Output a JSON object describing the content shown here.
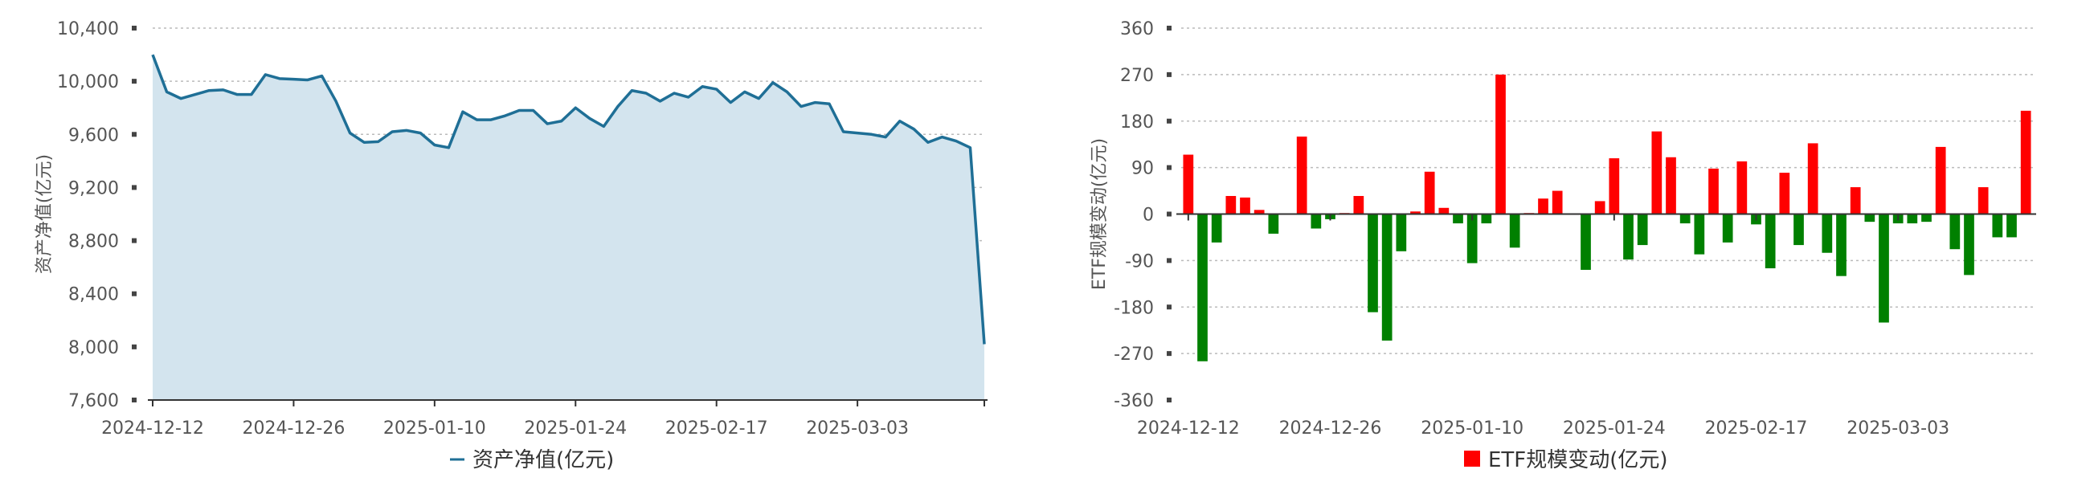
{
  "chart_data": [
    {
      "type": "area",
      "ylabel": "资产净值(亿元)",
      "ylim": [
        7600,
        10400
      ],
      "yticks": [
        7600,
        8000,
        8400,
        8800,
        9200,
        9600,
        10000,
        10400
      ],
      "ytick_labels": [
        "7,600",
        "8,000",
        "8,400",
        "8,800",
        "9,200",
        "9,600",
        "10,000",
        "10,400"
      ],
      "xtick_labels": [
        "2024-12-12",
        "2024-12-26",
        "2025-01-10",
        "2025-01-24",
        "2025-02-17",
        "2025-03-03"
      ],
      "xtick_index": [
        0,
        10,
        20,
        30,
        40,
        50
      ],
      "grid": true,
      "legend": {
        "position": "bottom",
        "entries": [
          "资产净值(亿元)"
        ]
      },
      "colors": {
        "line": "#1f6f96",
        "fill": "#d3e4ee"
      },
      "series": [
        {
          "name": "资产净值(亿元)",
          "values": [
            10200,
            9920,
            9870,
            9900,
            9930,
            9935,
            9900,
            9900,
            10050,
            10020,
            10015,
            10010,
            10040,
            9850,
            9610,
            9540,
            9545,
            9620,
            9630,
            9610,
            9520,
            9500,
            9770,
            9710,
            9710,
            9740,
            9780,
            9780,
            9680,
            9700,
            9800,
            9720,
            9660,
            9810,
            9930,
            9910,
            9850,
            9910,
            9880,
            9960,
            9940,
            9840,
            9920,
            9870,
            9990,
            9920,
            9810,
            9840,
            9830,
            9620,
            9610,
            9600,
            9580,
            9700,
            9640,
            9540,
            9580,
            9550,
            9500,
            8020
          ]
        }
      ]
    },
    {
      "type": "bar",
      "ylabel": "ETF规模变动(亿元)",
      "ylim": [
        -360,
        360
      ],
      "yticks": [
        -360,
        -270,
        -180,
        -90,
        0,
        90,
        180,
        270,
        360
      ],
      "ytick_labels": [
        "-360",
        "-270",
        "-180",
        "-90",
        "0",
        "90",
        "180",
        "270",
        "360"
      ],
      "xtick_labels": [
        "2024-12-12",
        "2024-12-26",
        "2025-01-10",
        "2025-01-24",
        "2025-02-17",
        "2025-03-03"
      ],
      "xtick_index": [
        0,
        10,
        20,
        30,
        40,
        50
      ],
      "grid": true,
      "legend": {
        "position": "bottom",
        "entries": [
          "ETF规模变动(亿元)"
        ]
      },
      "colors": {
        "positive": "#ff0000",
        "negative": "#008000"
      },
      "series": [
        {
          "name": "ETF规模变动(亿元)",
          "values": [
            115,
            -285,
            -55,
            35,
            32,
            8,
            -38,
            0,
            150,
            -28,
            -10,
            2,
            35,
            -190,
            -245,
            -72,
            5,
            82,
            12,
            -18,
            -95,
            -18,
            270,
            -65,
            2,
            30,
            45,
            0,
            -108,
            25,
            108,
            -88,
            -60,
            160,
            110,
            -18,
            -78,
            88,
            -55,
            102,
            -20,
            -105,
            80,
            -60,
            137,
            -75,
            -120,
            52,
            -15,
            -210,
            -18,
            -18,
            -15,
            130,
            -68,
            -118,
            52,
            -45,
            -45,
            200
          ]
        }
      ]
    }
  ]
}
